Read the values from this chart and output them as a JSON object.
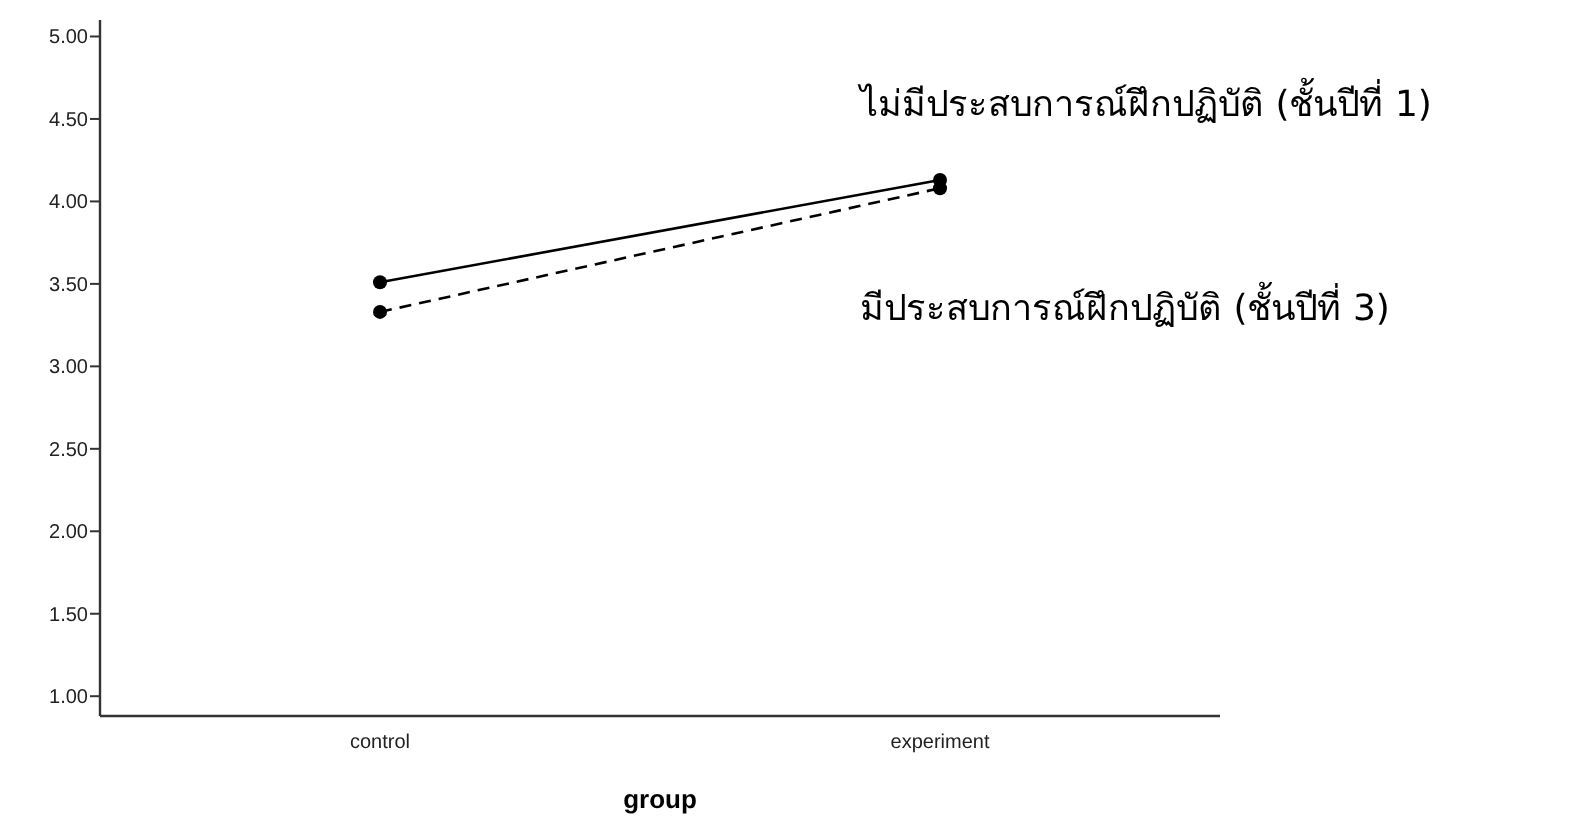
{
  "chart_data": {
    "type": "line",
    "xlabel": "group",
    "categories": [
      "control",
      "experiment"
    ],
    "series": [
      {
        "name": "ไม่มีประสบการณ์ฝึกปฏิบัติ (ชั้นปีที่ 1)",
        "color": "#000000",
        "line_style": "solid",
        "values": [
          3.51,
          4.13
        ]
      },
      {
        "name": "มีประสบการณ์ฝึกปฏิบัติ (ชั้นปีที่ 3)",
        "color": "#000000",
        "line_style": "dashed",
        "values": [
          3.33,
          4.08
        ]
      }
    ],
    "ylim": [
      0.88,
      5.1
    ],
    "yticks": [
      {
        "value": 1,
        "label": "1.00"
      },
      {
        "value": 1.5,
        "label": "1.50"
      },
      {
        "value": 2,
        "label": "2.00"
      },
      {
        "value": 2.5,
        "label": "2.50"
      },
      {
        "value": 3,
        "label": "3.00"
      },
      {
        "value": 3.5,
        "label": "3.50"
      },
      {
        "value": 4,
        "label": "4.00"
      },
      {
        "value": 4.5,
        "label": "4.50"
      },
      {
        "value": 5,
        "label": "5.00"
      }
    ],
    "marker": "circle",
    "legend": false,
    "grid": false
  }
}
